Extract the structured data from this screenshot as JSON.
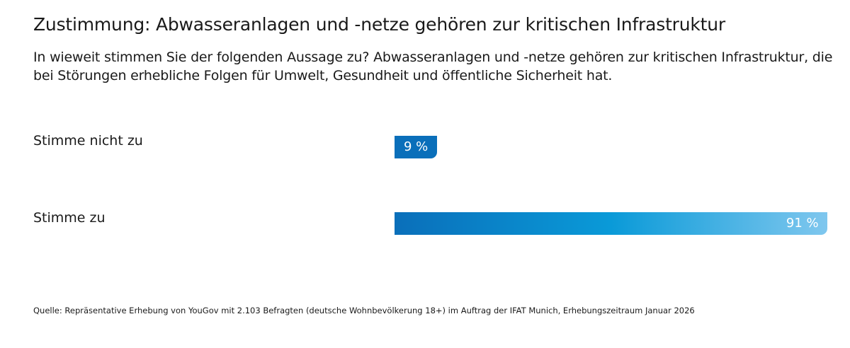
{
  "title": "Zustimmung: Abwasseranlagen und -netze gehören zur kritischen Infrastruktur",
  "subtitle": "In wieweit stimmen Sie der folgenden Aussage zu? Abwasseranlagen und -netze gehören zur kritischen Infrastruktur, die bei Störungen erhebliche Folgen für Umwelt, Gesundheit und öffentliche Sicherheit hat.",
  "source": "Quelle: Repräsentative Erhebung von YouGov mit 2.103 Befragten (deutsche Wohnbevölkerung 18+) im Auftrag der IFAT Munich, Erhebungszeitraum Januar 2026",
  "chart_data": {
    "type": "bar",
    "orientation": "horizontal",
    "categories": [
      "Stimme nicht zu",
      "Stimme zu"
    ],
    "values": [
      9,
      91
    ],
    "data_labels": [
      "9 %",
      "91 %"
    ],
    "xlim": [
      0,
      100
    ],
    "grid": false,
    "colors": {
      "solid": "#0a6fba",
      "gradient": [
        "#0a6fba",
        "#0a9ad8",
        "#7fc7ee"
      ]
    }
  }
}
